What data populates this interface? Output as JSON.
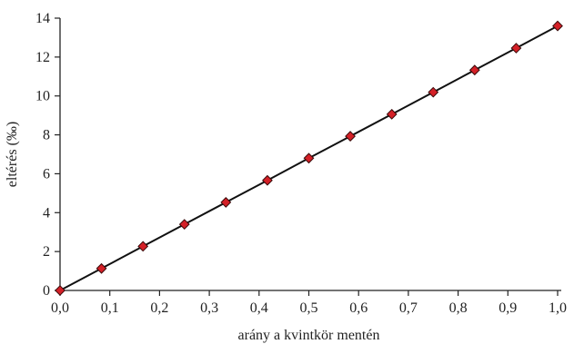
{
  "chart_data": {
    "type": "line",
    "xlabel": "arány a kvintkör mentén",
    "ylabel": "eltérés (‰)",
    "xlim": [
      0,
      1
    ],
    "ylim": [
      0,
      14
    ],
    "x_ticks": [
      "0,0",
      "0,1",
      "0,2",
      "0,3",
      "0,4",
      "0,5",
      "0,6",
      "0,7",
      "0,8",
      "0,9",
      "1,0"
    ],
    "y_ticks": [
      "0",
      "2",
      "4",
      "6",
      "8",
      "10",
      "12",
      "14"
    ],
    "grid": false,
    "line_color": "#111111",
    "marker_color": "#d42027",
    "marker_shape": "diamond",
    "series": [
      {
        "x": [
          0,
          0.0833,
          0.1667,
          0.25,
          0.3333,
          0.4167,
          0.5,
          0.5833,
          0.6667,
          0.75,
          0.8333,
          0.9167,
          1.0
        ],
        "values": [
          0,
          1.13,
          2.27,
          3.4,
          4.53,
          5.66,
          6.8,
          7.93,
          9.06,
          10.19,
          11.33,
          12.46,
          13.6
        ]
      }
    ]
  }
}
